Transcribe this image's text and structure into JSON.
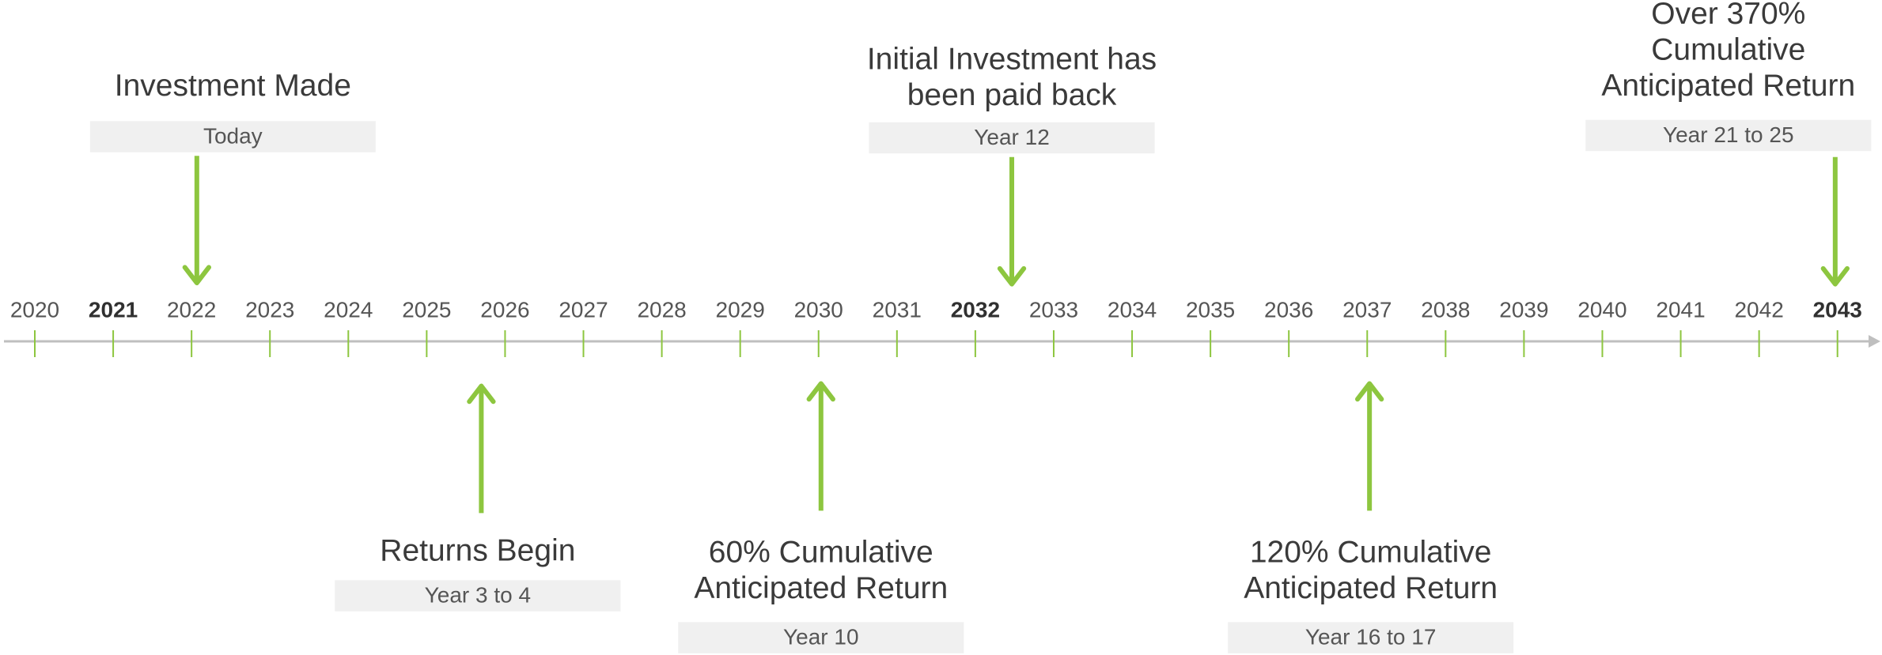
{
  "timeline": {
    "years": [
      {
        "label": 2020,
        "bold": false
      },
      {
        "label": 2021,
        "bold": true
      },
      {
        "label": 2022,
        "bold": false
      },
      {
        "label": 2023,
        "bold": false
      },
      {
        "label": 2024,
        "bold": false
      },
      {
        "label": 2025,
        "bold": false
      },
      {
        "label": 2026,
        "bold": false
      },
      {
        "label": 2027,
        "bold": false
      },
      {
        "label": 2028,
        "bold": false
      },
      {
        "label": 2029,
        "bold": false
      },
      {
        "label": 2030,
        "bold": false
      },
      {
        "label": 2031,
        "bold": false
      },
      {
        "label": 2032,
        "bold": true
      },
      {
        "label": 2033,
        "bold": false
      },
      {
        "label": 2034,
        "bold": false
      },
      {
        "label": 2035,
        "bold": false
      },
      {
        "label": 2036,
        "bold": false
      },
      {
        "label": 2037,
        "bold": false
      },
      {
        "label": 2038,
        "bold": false
      },
      {
        "label": 2039,
        "bold": false
      },
      {
        "label": 2040,
        "bold": false
      },
      {
        "label": 2041,
        "bold": false
      },
      {
        "label": 2042,
        "bold": false
      },
      {
        "label": 2043,
        "bold": true
      }
    ],
    "events": [
      {
        "title": [
          "Investment Made"
        ],
        "subtitle": "Today"
      },
      {
        "title": [
          "Initial Investment has",
          "been paid back"
        ],
        "subtitle": "Year 12"
      },
      {
        "title": [
          "Over 370%",
          "Cumulative",
          "Anticipated Return"
        ],
        "subtitle": "Year 21 to 25"
      },
      {
        "title": [
          "Returns Begin"
        ],
        "subtitle": "Year 3 to 4"
      },
      {
        "title": [
          "60% Cumulative",
          "Anticipated Return"
        ],
        "subtitle": "Year 10"
      },
      {
        "title": [
          "120% Cumulative",
          "Anticipated Return"
        ],
        "subtitle": "Year 16 to 17"
      }
    ]
  }
}
